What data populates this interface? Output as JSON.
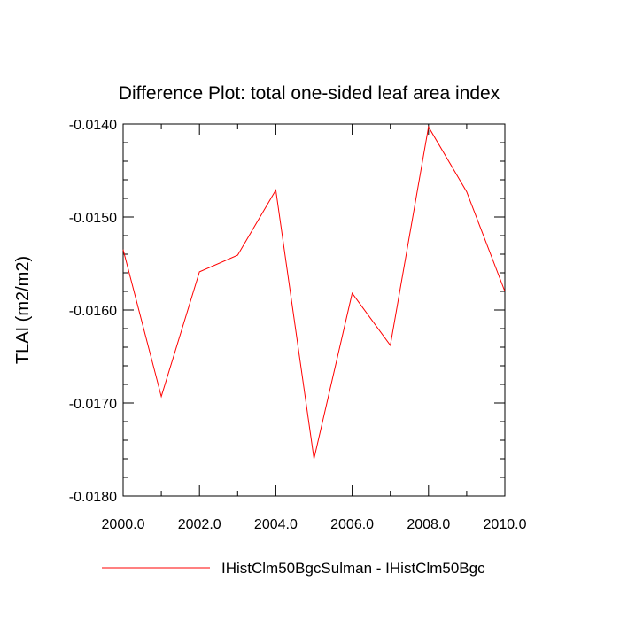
{
  "chart_data": {
    "type": "line",
    "title": "Difference Plot: total one-sided leaf area index",
    "xlabel": "",
    "ylabel": "TLAI  (m2/m2)",
    "xlim": [
      2000,
      2010
    ],
    "ylim": [
      -0.018,
      -0.014
    ],
    "x_ticks": [
      2000,
      2002,
      2004,
      2006,
      2008,
      2010
    ],
    "x_tick_labels": [
      "2000.0",
      "2002.0",
      "2004.0",
      "2006.0",
      "2008.0",
      "2010.0"
    ],
    "y_ticks": [
      -0.014,
      -0.015,
      -0.016,
      -0.017,
      -0.018
    ],
    "y_tick_labels": [
      "-0.0140",
      "-0.0150",
      "-0.0160",
      "-0.0170",
      "-0.0180"
    ],
    "grid": false,
    "legend_position": "bottom",
    "series": [
      {
        "name": "IHistClm50BgcSulman - IHistClm50Bgc",
        "color": "#ff0000",
        "x": [
          2000,
          2001,
          2002,
          2003,
          2004,
          2005,
          2006,
          2007,
          2008,
          2009,
          2010
        ],
        "y": [
          -0.01535,
          -0.01693,
          -0.01559,
          -0.01541,
          -0.01471,
          -0.0176,
          -0.01582,
          -0.01638,
          -0.01403,
          -0.01473,
          -0.0158
        ]
      }
    ]
  }
}
